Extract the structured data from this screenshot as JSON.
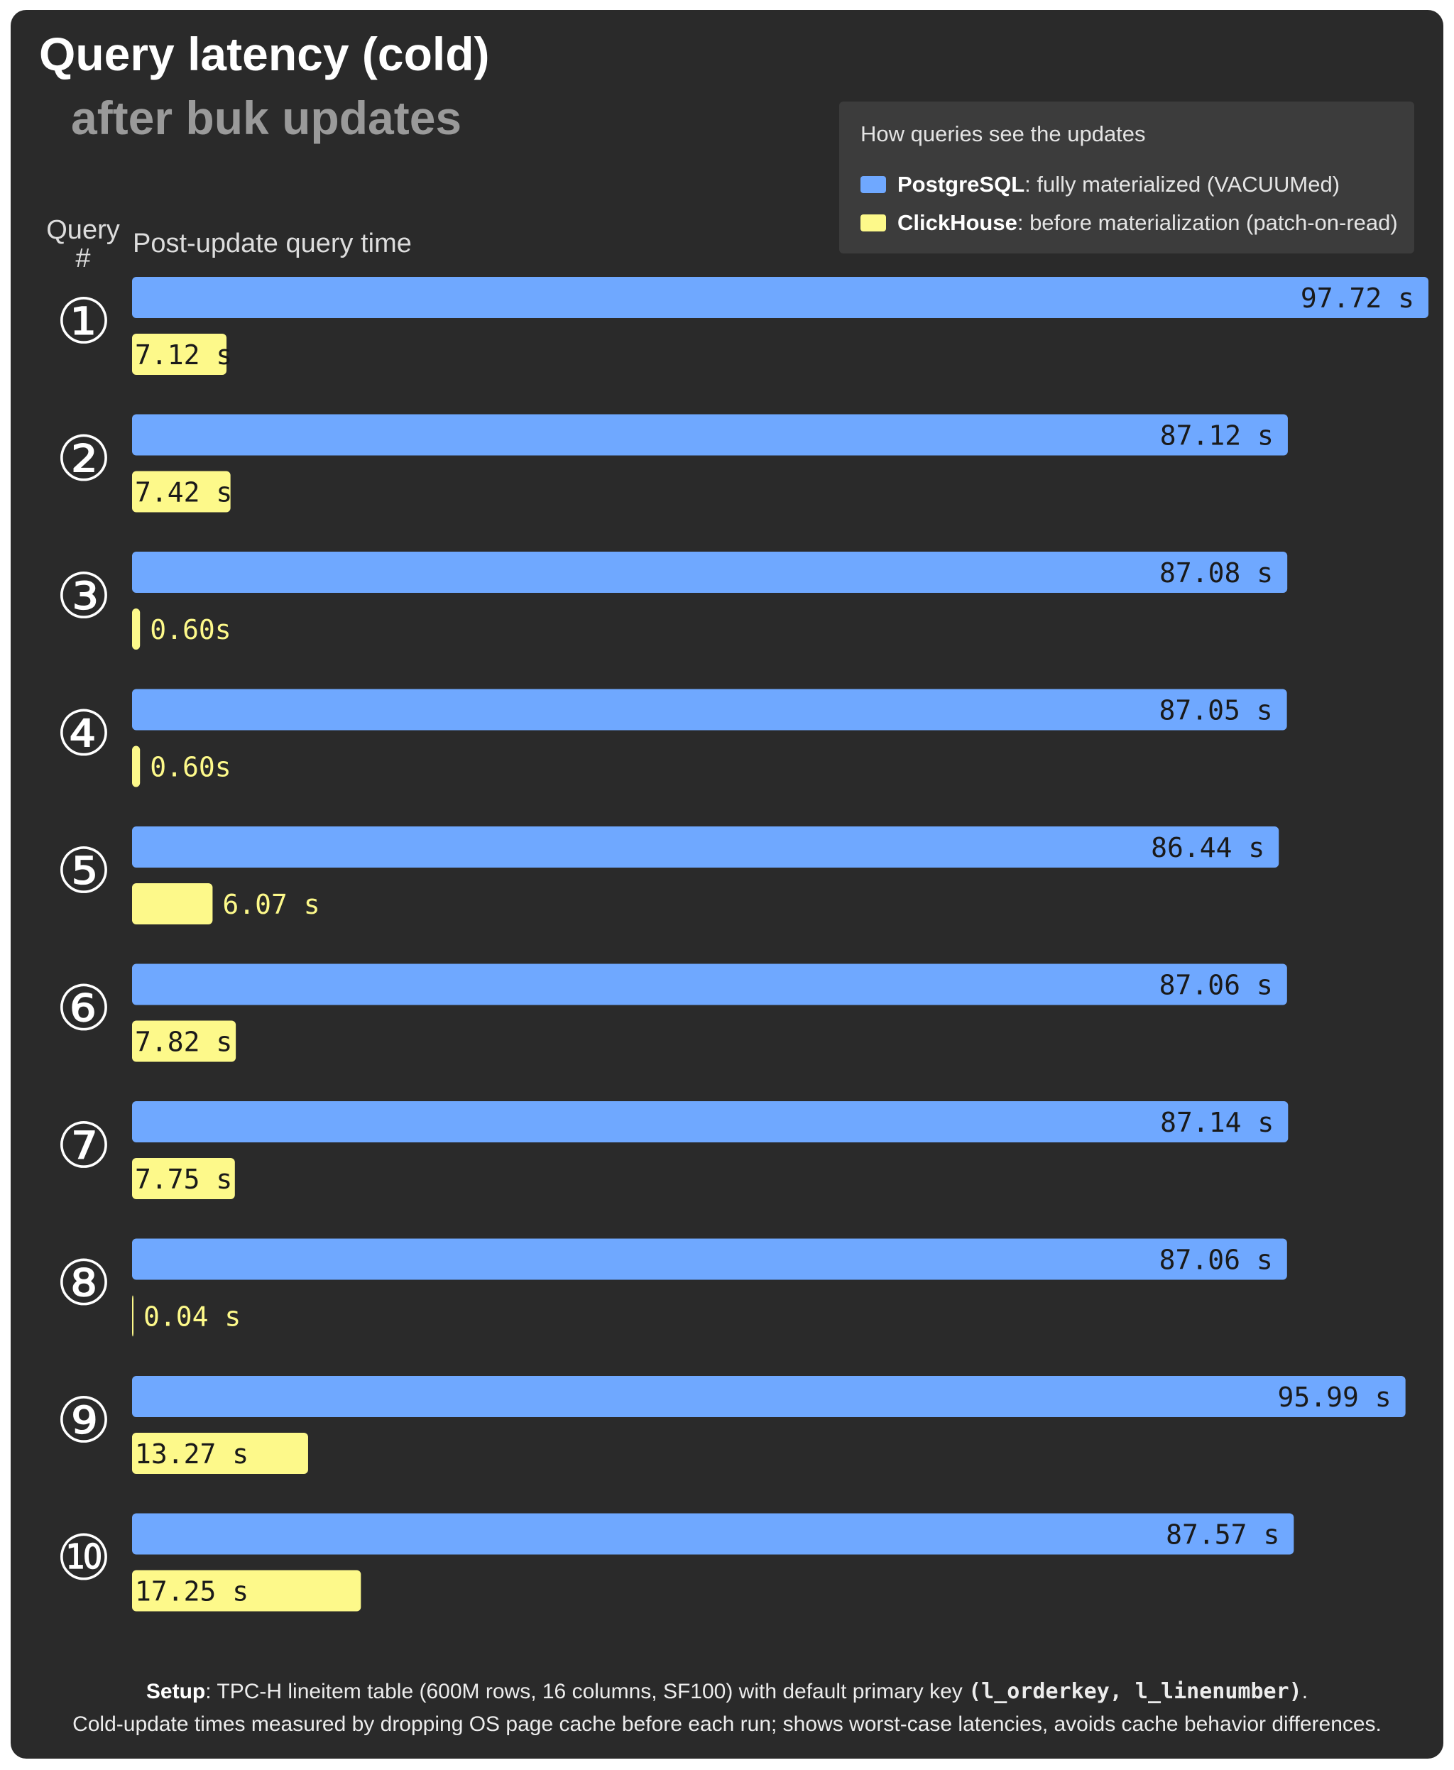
{
  "chart_data": {
    "type": "bar",
    "orientation": "horizontal",
    "title": "Query latency (cold)",
    "subtitle": "after buk updates",
    "ylabel": "Query #",
    "xlabel": "Post-update query time",
    "categories": [
      "①",
      "②",
      "③",
      "④",
      "⑤",
      "⑥",
      "⑦",
      "⑧",
      "⑨",
      "⑩"
    ],
    "series": [
      {
        "name": "PostgreSQL",
        "color": "#6fa8ff",
        "values": [
          97.72,
          87.12,
          87.08,
          87.05,
          86.44,
          87.06,
          87.14,
          87.06,
          95.99,
          87.57
        ],
        "labels": [
          "97.72 s",
          "87.12 s",
          "87.08 s",
          "87.05 s",
          "86.44 s",
          "87.06 s",
          "87.14 s",
          "87.06 s",
          "95.99 s",
          "87.57 s"
        ]
      },
      {
        "name": "ClickHouse",
        "color": "#fdf98a",
        "values": [
          7.12,
          7.42,
          0.6,
          0.6,
          6.07,
          7.82,
          7.75,
          0.04,
          13.27,
          17.25
        ],
        "labels": [
          "7.12 s",
          "7.42 s",
          "0.60s",
          "0.60s",
          "6.07 s",
          "7.82 s",
          "7.75 s",
          "0.04 s",
          "13.27 s",
          "17.25 s"
        ]
      }
    ],
    "xlim": [
      0,
      97.72
    ],
    "grid": false,
    "legend": {
      "placement": "top-right",
      "title": "How queries see the updates",
      "entries": [
        {
          "name": "PostgreSQL",
          "description": ": fully materialized (VACUUMed)",
          "color": "#6fa8ff"
        },
        {
          "name": "ClickHouse",
          "description": ": before materialization (patch-on-read)",
          "color": "#fdf98a"
        }
      ]
    }
  },
  "footer": {
    "setup_label": "Setup",
    "line1_text": ": TPC-H lineitem table (600M rows, 16 columns, SF100) with default primary key ",
    "line1_code": "(l_orderkey, l_linenumber)",
    "line1_end": ".",
    "line2": "Cold-update times measured by dropping OS page cache before each run; shows worst-case latencies, avoids cache behavior differences."
  }
}
